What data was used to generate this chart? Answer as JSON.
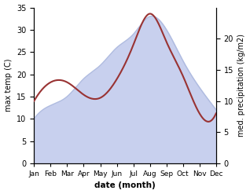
{
  "months": [
    "Jan",
    "Feb",
    "Mar",
    "Apr",
    "May",
    "Jun",
    "Jul",
    "Aug",
    "Sep",
    "Oct",
    "Nov",
    "Dec"
  ],
  "max_temp": [
    10,
    13,
    15,
    19,
    22,
    26,
    29,
    33,
    30,
    23,
    17,
    12
  ],
  "precipitation": [
    10,
    13,
    13,
    11,
    10.5,
    13.5,
    19,
    24,
    19.5,
    14,
    8,
    8
  ],
  "temp_color": "#b0bce0",
  "temp_fill_color": "#c8d0ee",
  "precip_color": "#993333",
  "ylabel_left": "max temp (C)",
  "ylabel_right": "med. precipitation (kg/m2)",
  "xlabel": "date (month)",
  "ylim_left": [
    0,
    35
  ],
  "ylim_right": [
    0,
    25
  ],
  "yticks_left": [
    0,
    5,
    10,
    15,
    20,
    25,
    30,
    35
  ],
  "yticks_right": [
    0,
    5,
    10,
    15,
    20
  ],
  "background_color": "#ffffff"
}
